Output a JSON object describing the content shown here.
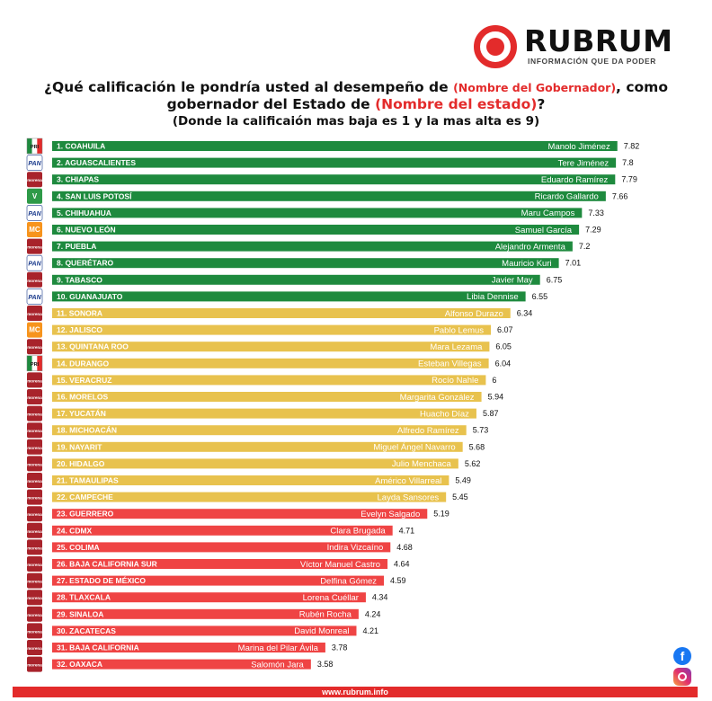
{
  "brand": {
    "name": "RUBRUM",
    "tagline": "INFORMACIÓN QUE DA PODER",
    "url": "www.rubrum.info"
  },
  "title": {
    "part1": "¿Qué calificación le pondría usted al desempeño de ",
    "highlight1": "(Nombre del Gobernador)",
    "part2": ", como gobernador del Estado de ",
    "highlight2": "(Nombre del estado)",
    "part3": "?",
    "subtitle": "(Donde la calificaión mas baja es 1 y la mas alta es 9)"
  },
  "colors": {
    "green": "#1e8a3e",
    "yellow": "#e8c24e",
    "red": "#ef4444",
    "accent_red": "#e32b2b",
    "pan_blue": "#1a3a8c",
    "mc_orange": "#f7941d"
  },
  "social": {
    "facebook_icon": "facebook-icon",
    "instagram_icon": "instagram-icon"
  },
  "chart_data": {
    "type": "bar",
    "orientation": "horizontal",
    "xlim": [
      0,
      9
    ],
    "categories": [
      "1. COAHUILA",
      "2. AGUASCALIENTES",
      "3. CHIAPAS",
      "4. SAN LUIS POTOSÍ",
      "5. CHIHUAHUA",
      "6. NUEVO LEÓN",
      "7. PUEBLA",
      "8. QUERÉTARO",
      "9. TABASCO",
      "10. GUANAJUATO",
      "11. SONORA",
      "12. JALISCO",
      "13. QUINTANA ROO",
      "14. DURANGO",
      "15. VERACRUZ",
      "16. MORELOS",
      "17. YUCATÁN",
      "18. MICHOACÁN",
      "19. NAYARIT",
      "20. HIDALGO",
      "21. TAMAULIPAS",
      "22. CAMPECHE",
      "23. GUERRERO",
      "24. CDMX",
      "25. COLIMA",
      "26. BAJA CALIFORNIA SUR",
      "27. ESTADO DE MÉXICO",
      "28. TLAXCALA",
      "29. SINALOA",
      "30. ZACATECAS",
      "31. BAJA CALIFORNIA",
      "32. OAXACA"
    ],
    "governors": [
      "Manolo Jiménez",
      "Tere Jiménez",
      "Eduardo Ramírez",
      "Ricardo Gallardo",
      "Maru Campos",
      "Samuel García",
      "Alejandro Armenta",
      "Mauricio Kuri",
      "Javier May",
      "Libia Dennise",
      "Alfonso Durazo",
      "Pablo Lemus",
      "Mara Lezama",
      "Esteban Villegas",
      "Rocío Nahle",
      "Margarita González",
      "Huacho Díaz",
      "Alfredo Ramírez",
      "Miguel Ángel Navarro",
      "Julio Menchaca",
      "Américo Villarreal",
      "Layda Sansores",
      "Evelyn Salgado",
      "Clara Brugada",
      "Indira Vizcaíno",
      "Víctor Manuel Castro",
      "Delfina Gómez",
      "Lorena Cuéllar",
      "Rubén Rocha",
      "David Monreal",
      "Marina del Pilar Ávila",
      "Salomón Jara"
    ],
    "values": [
      7.82,
      7.8,
      7.79,
      7.66,
      7.33,
      7.29,
      7.2,
      7.01,
      6.75,
      6.55,
      6.34,
      6.07,
      6.05,
      6.04,
      6,
      5.94,
      5.87,
      5.73,
      5.68,
      5.62,
      5.49,
      5.45,
      5.19,
      4.71,
      4.68,
      4.64,
      4.59,
      4.34,
      4.24,
      4.21,
      3.78,
      3.58
    ],
    "value_labels": [
      "7.82",
      "7.8",
      "7.79",
      "7.66",
      "7.33",
      "7.29",
      "7.2",
      "7.01",
      "6.75",
      "6.55",
      "6.34",
      "6.07",
      "6.05",
      "6.04",
      "6",
      "5.94",
      "5.87",
      "5.73",
      "5.68",
      "5.62",
      "5.49",
      "5.45",
      "5.19",
      "4.71",
      "4.68",
      "4.64",
      "4.59",
      "4.34",
      "4.24",
      "4.21",
      "3.78",
      "3.58"
    ],
    "parties": [
      "pri",
      "pan",
      "morena",
      "pvem",
      "pan",
      "mc",
      "morena",
      "pan",
      "morena",
      "pan",
      "morena",
      "mc",
      "morena",
      "pri",
      "morena",
      "morena",
      "morena",
      "morena",
      "morena",
      "morena",
      "morena",
      "morena",
      "morena",
      "morena",
      "morena",
      "morena",
      "morena",
      "morena",
      "morena",
      "morena",
      "morena",
      "morena"
    ],
    "party_labels": {
      "pri": "PRI",
      "pan": "PAN",
      "morena": "morena",
      "pvem": "V",
      "mc": "MC"
    },
    "bar_colors": [
      "green",
      "green",
      "green",
      "green",
      "green",
      "green",
      "green",
      "green",
      "green",
      "green",
      "yellow",
      "yellow",
      "yellow",
      "yellow",
      "yellow",
      "yellow",
      "yellow",
      "yellow",
      "yellow",
      "yellow",
      "yellow",
      "yellow",
      "red",
      "red",
      "red",
      "red",
      "red",
      "red",
      "red",
      "red",
      "red",
      "red"
    ],
    "grid": false,
    "legend": "none"
  }
}
